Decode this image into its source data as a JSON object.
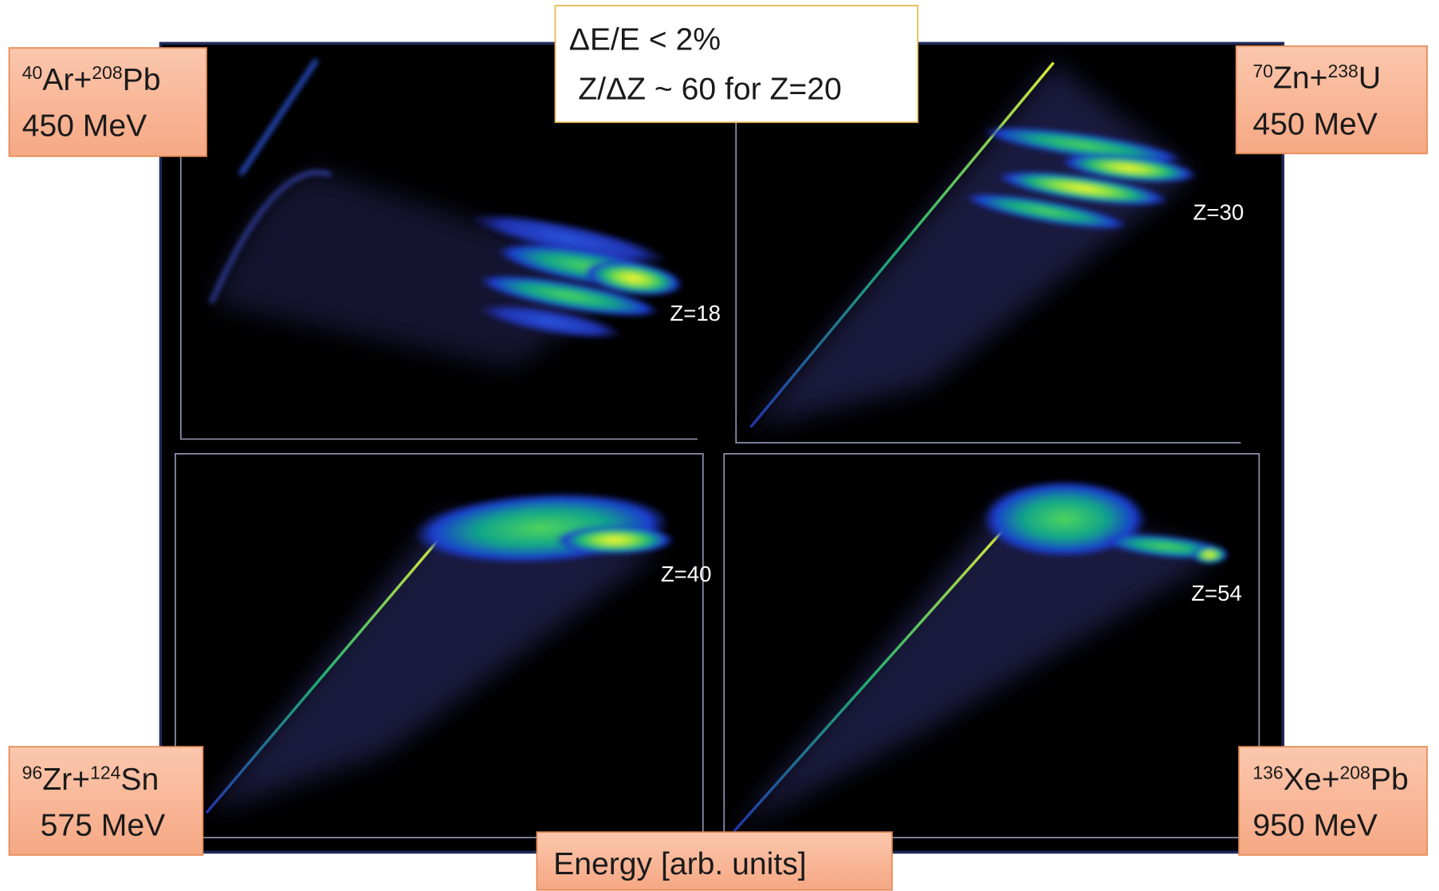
{
  "note_box": {
    "line1": "ΔE/E < 2%",
    "line2": "Z/ΔZ ~ 60 for Z=20"
  },
  "x_axis_label": "Energy [arb. units]",
  "panels": [
    {
      "reaction": [
        {
          "sup": "40",
          "text": "Ar+"
        },
        {
          "sup": "208",
          "text": "Pb"
        }
      ],
      "energy": "450 MeV",
      "z_label": "Z=18"
    },
    {
      "reaction": [
        {
          "sup": "70",
          "text": "Zn+"
        },
        {
          "sup": "238",
          "text": "U"
        }
      ],
      "energy": "450 MeV",
      "z_label": "Z=30"
    },
    {
      "reaction": [
        {
          "sup": "96",
          "text": "Zr+"
        },
        {
          "sup": "124",
          "text": "Sn"
        }
      ],
      "energy": "575 MeV",
      "z_label": "Z=40"
    },
    {
      "reaction": [
        {
          "sup": "136",
          "text": "Xe+"
        },
        {
          "sup": "208",
          "text": "Pb"
        }
      ],
      "energy": "950 MeV",
      "z_label": "Z=54"
    }
  ]
}
